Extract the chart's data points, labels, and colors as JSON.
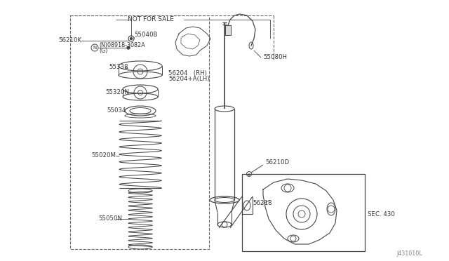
{
  "background_color": "#ffffff",
  "fig_width": 6.4,
  "fig_height": 3.72,
  "dpi": 100,
  "labels": {
    "not_for_sale": "NOT FOR SALE",
    "56210K": "56210K",
    "55040B": "55040B",
    "08918_3082A_line1": "(N)08918-3082A",
    "08918_3082A_line2": "(G)",
    "55338": "55338",
    "56204": "56204   (RH)",
    "56204A": "56204+A(LH)",
    "55320N": "55320N",
    "55034": "55034",
    "55020M": "55020M",
    "55050N": "55050N",
    "55080H": "55080H",
    "56210D": "56210D",
    "56218": "56218",
    "SEC430": "SEC. 430",
    "J431010L": "J431010L"
  },
  "line_color": "#444444",
  "text_color": "#333333",
  "dashed_color": "#666666"
}
